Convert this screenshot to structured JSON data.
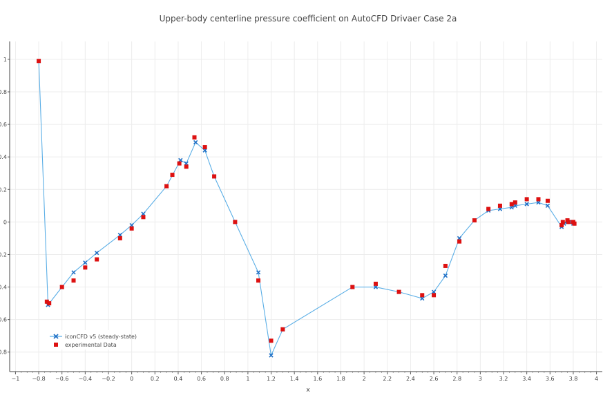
{
  "chart_data": {
    "type": "line",
    "title": "Upper-body centerline pressure coefficient on AutoCFD Drivaer Case 2a",
    "xlabel": "x",
    "ylabel": "",
    "xlim": [
      -1.05,
      4.05
    ],
    "ylim": [
      -0.92,
      1.11
    ],
    "grid": true,
    "legend_position": "bottom-left",
    "x_ticks": [
      -1,
      -0.8,
      -0.6,
      -0.4,
      -0.2,
      0,
      0.2,
      0.4,
      0.6,
      0.8,
      1,
      1.2,
      1.4,
      1.6,
      1.8,
      2,
      2.2,
      2.4,
      2.6,
      2.8,
      3,
      3.2,
      3.4,
      3.6,
      3.8,
      4
    ],
    "x_tick_labels": [
      "−1",
      "−0.8",
      "−0.6",
      "−0.4",
      "−0.2",
      "0",
      "0.2",
      "0.4",
      "0.6",
      "0.8",
      "1",
      "1.2",
      "1.4",
      "1.6",
      "1.8",
      "2",
      "2.2",
      "2.4",
      "2.6",
      "2.8",
      "3",
      "3.2",
      "3.4",
      "3.6",
      "3.8",
      "4"
    ],
    "y_ticks": [
      1,
      0.8,
      0.6,
      0.4,
      0.2,
      0,
      -0.2,
      -0.4,
      -0.6,
      -0.8
    ],
    "y_tick_labels": [
      "1",
      "0.8",
      "0.6",
      "0.4",
      "0.2",
      "0",
      "0.2",
      "0.4",
      "0.6",
      "0.8"
    ],
    "series": [
      {
        "name": "iconCFD v5 (steady-state)",
        "mode": "lines+markers",
        "line_color": "#5aaee6",
        "marker_color": "#1f6fc5",
        "marker": "x",
        "x": [
          -0.8,
          -0.72,
          -0.6,
          -0.5,
          -0.4,
          -0.3,
          -0.1,
          0,
          0.1,
          0.3,
          0.42,
          0.47,
          0.55,
          0.63,
          0.71,
          0.89,
          1.09,
          1.2,
          1.3,
          1.9,
          2.1,
          2.3,
          2.5,
          2.6,
          2.7,
          2.82,
          2.95,
          3.07,
          3.17,
          3.27,
          3.3,
          3.4,
          3.5,
          3.58,
          3.7,
          3.72,
          3.75,
          3.77,
          3.8
        ],
        "y": [
          0.99,
          -0.51,
          -0.4,
          -0.31,
          -0.25,
          -0.19,
          -0.08,
          -0.02,
          0.05,
          0.22,
          0.38,
          0.36,
          0.49,
          0.44,
          0.28,
          0.0,
          -0.31,
          -0.82,
          -0.66,
          -0.4,
          -0.4,
          -0.43,
          -0.47,
          -0.43,
          -0.33,
          -0.1,
          0.01,
          0.07,
          0.08,
          0.09,
          0.1,
          0.11,
          0.12,
          0.1,
          -0.03,
          -0.01,
          0.0,
          0.0,
          -0.01
        ]
      },
      {
        "name": "experimental Data",
        "mode": "markers",
        "marker_color": "#dd1111",
        "marker": "square",
        "x": [
          -0.8,
          -0.73,
          -0.71,
          -0.6,
          -0.5,
          -0.4,
          -0.3,
          -0.1,
          0,
          0.1,
          0.3,
          0.35,
          0.41,
          0.47,
          0.54,
          0.63,
          0.71,
          0.89,
          1.09,
          1.2,
          1.3,
          1.9,
          2.1,
          2.3,
          2.5,
          2.6,
          2.7,
          2.82,
          2.95,
          3.07,
          3.17,
          3.27,
          3.3,
          3.4,
          3.5,
          3.58,
          3.7,
          3.71,
          3.75,
          3.76,
          3.8,
          3.81
        ],
        "y": [
          0.99,
          -0.49,
          -0.5,
          -0.4,
          -0.36,
          -0.28,
          -0.23,
          -0.1,
          -0.04,
          0.03,
          0.22,
          0.29,
          0.36,
          0.34,
          0.52,
          0.46,
          0.28,
          0.0,
          -0.36,
          -0.73,
          -0.66,
          -0.4,
          -0.38,
          -0.43,
          -0.45,
          -0.45,
          -0.27,
          -0.12,
          0.01,
          0.08,
          0.1,
          0.11,
          0.12,
          0.14,
          0.14,
          0.13,
          -0.02,
          0.0,
          0.01,
          0.0,
          0.0,
          -0.01
        ]
      }
    ]
  }
}
